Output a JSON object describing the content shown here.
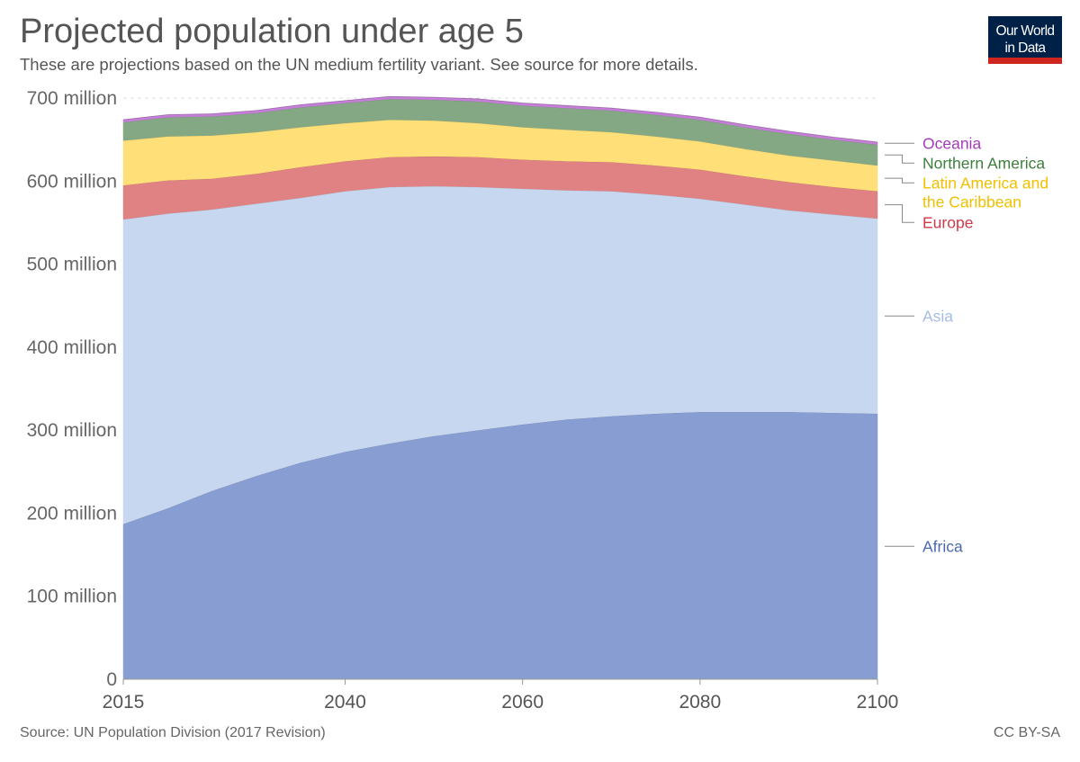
{
  "header": {
    "title": "Projected population under age 5",
    "subtitle": "These are projections based on the UN medium fertility variant. See source for more details."
  },
  "logo": {
    "line1": "Our World",
    "line2": "in Data",
    "bg_color": "#002147",
    "accent_color": "#ce261e"
  },
  "footer": {
    "source": "Source: UN Population Division (2017 Revision)",
    "license": "CC BY-SA"
  },
  "chart_data": {
    "type": "area",
    "stacked": true,
    "title": "Projected population under age 5",
    "xlabel": "",
    "ylabel": "",
    "xlim": [
      2015,
      2100
    ],
    "ylim": [
      0,
      700
    ],
    "y_unit": "million",
    "grid": true,
    "x_ticks": [
      {
        "value": 2015,
        "label": "2015"
      },
      {
        "value": 2040,
        "label": "2040"
      },
      {
        "value": 2060,
        "label": "2060"
      },
      {
        "value": 2080,
        "label": "2080"
      },
      {
        "value": 2100,
        "label": "2100"
      }
    ],
    "y_ticks": [
      {
        "value": 0,
        "label": "0"
      },
      {
        "value": 100,
        "label": "100 million"
      },
      {
        "value": 200,
        "label": "200 million"
      },
      {
        "value": 300,
        "label": "300 million"
      },
      {
        "value": 400,
        "label": "400 million"
      },
      {
        "value": 500,
        "label": "500 million"
      },
      {
        "value": 600,
        "label": "600 million"
      },
      {
        "value": 700,
        "label": "700 million"
      }
    ],
    "x": [
      2015,
      2020,
      2025,
      2030,
      2035,
      2040,
      2045,
      2050,
      2055,
      2060,
      2065,
      2070,
      2075,
      2080,
      2085,
      2090,
      2095,
      2100
    ],
    "series": [
      {
        "name": "Africa",
        "color": "#889ed2",
        "values": [
          187,
          206,
          227,
          245,
          261,
          274,
          284,
          293,
          300,
          307,
          313,
          317,
          320,
          322,
          322,
          322,
          321,
          320
        ]
      },
      {
        "name": "Asia",
        "color": "#c7d7ef",
        "values": [
          367,
          355,
          339,
          328,
          319,
          314,
          309,
          301,
          293,
          284,
          276,
          271,
          264,
          257,
          250,
          243,
          239,
          235
        ]
      },
      {
        "name": "Europe",
        "color": "#e08283",
        "values": [
          41,
          40,
          37,
          36,
          37,
          36,
          36,
          36,
          36,
          35,
          35,
          35,
          35,
          35,
          34,
          34,
          33,
          33
        ]
      },
      {
        "name": "Latin America and the Caribbean",
        "color": "#ffdf78",
        "values": [
          54,
          53,
          52,
          50,
          48,
          46,
          45,
          43,
          41,
          39,
          38,
          36,
          35,
          34,
          33,
          32,
          32,
          31
        ]
      },
      {
        "name": "Northern America",
        "color": "#84a884",
        "values": [
          22,
          23,
          23,
          23,
          24,
          24,
          25,
          25,
          26,
          26,
          26,
          26,
          26,
          26,
          26,
          26,
          25,
          25
        ]
      },
      {
        "name": "Oceania",
        "color": "#c57fd8",
        "values": [
          3,
          3,
          3,
          3,
          3,
          3,
          3,
          3,
          3,
          3,
          3,
          3,
          3,
          3,
          3,
          3,
          3,
          3
        ]
      }
    ],
    "legend": [
      {
        "series": "Oceania",
        "lines": [
          "Oceania"
        ],
        "text_color": "#a43cb8"
      },
      {
        "series": "Northern America",
        "lines": [
          "Northern America"
        ],
        "text_color": "#3d7f3d"
      },
      {
        "series": "Latin America and the Caribbean",
        "lines": [
          "Latin America and",
          "the Caribbean"
        ],
        "text_color": "#f0c000"
      },
      {
        "series": "Europe",
        "lines": [
          "Europe"
        ],
        "text_color": "#d0394a"
      },
      {
        "series": "Asia",
        "lines": [
          "Asia"
        ],
        "text_color": "#a5bde4"
      },
      {
        "series": "Africa",
        "lines": [
          "Africa"
        ],
        "text_color": "#4a6aac"
      }
    ]
  }
}
